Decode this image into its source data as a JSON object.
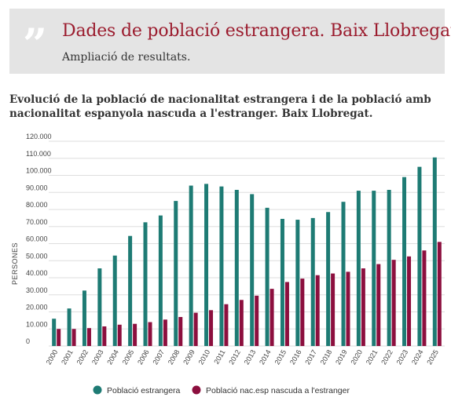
{
  "header": {
    "title": "Dades de població estrangera. Baix Llobregat",
    "subtitle": "Ampliació de resultats.",
    "quote_glyph": "”"
  },
  "chart_title": "Evolució de la població de nacionalitat estrangera i de la població amb nacionalitat espanyola nascuda a l'estranger. Baix Llobregat.",
  "colors": {
    "accent": "#9b1c2e",
    "series_foreign": "#1e7b74",
    "series_spanish_born_abroad": "#8c0f3e"
  },
  "chart_data": {
    "type": "bar",
    "ylabel": "PERSONES",
    "ylim": [
      0,
      120000
    ],
    "y_ticks": [
      "120.000",
      "110.000",
      "100.000",
      "90.000",
      "80.000",
      "70.000",
      "60.000",
      "50.000",
      "40.000",
      "30.000",
      "20.000",
      "10.000",
      "0"
    ],
    "categories": [
      "2000",
      "2001",
      "2002",
      "2003",
      "2004",
      "2005",
      "2006",
      "2007",
      "2008",
      "2009",
      "2010",
      "2011",
      "2012",
      "2013",
      "2014",
      "2015",
      "2016",
      "2017",
      "2018",
      "2019",
      "2020",
      "2021",
      "2022",
      "2023",
      "2024",
      "2025"
    ],
    "series": [
      {
        "name": "Població estrangera",
        "values": [
          16000,
          22000,
          32500,
          45500,
          53000,
          64500,
          72500,
          76500,
          85000,
          94000,
          95000,
          93500,
          91500,
          89000,
          81000,
          74500,
          74000,
          75000,
          78500,
          84500,
          91000,
          91000,
          91500,
          99000,
          105000,
          110500
        ]
      },
      {
        "name": "Població nac.esp nascuda a l'estranger",
        "values": [
          10000,
          10000,
          10500,
          11500,
          12500,
          13000,
          14000,
          15500,
          17000,
          19500,
          21000,
          24500,
          27000,
          29500,
          33500,
          37500,
          39500,
          41500,
          42500,
          43500,
          45500,
          48000,
          50500,
          52500,
          56000,
          61000
        ]
      }
    ],
    "grid": true,
    "legend_position": "bottom"
  }
}
